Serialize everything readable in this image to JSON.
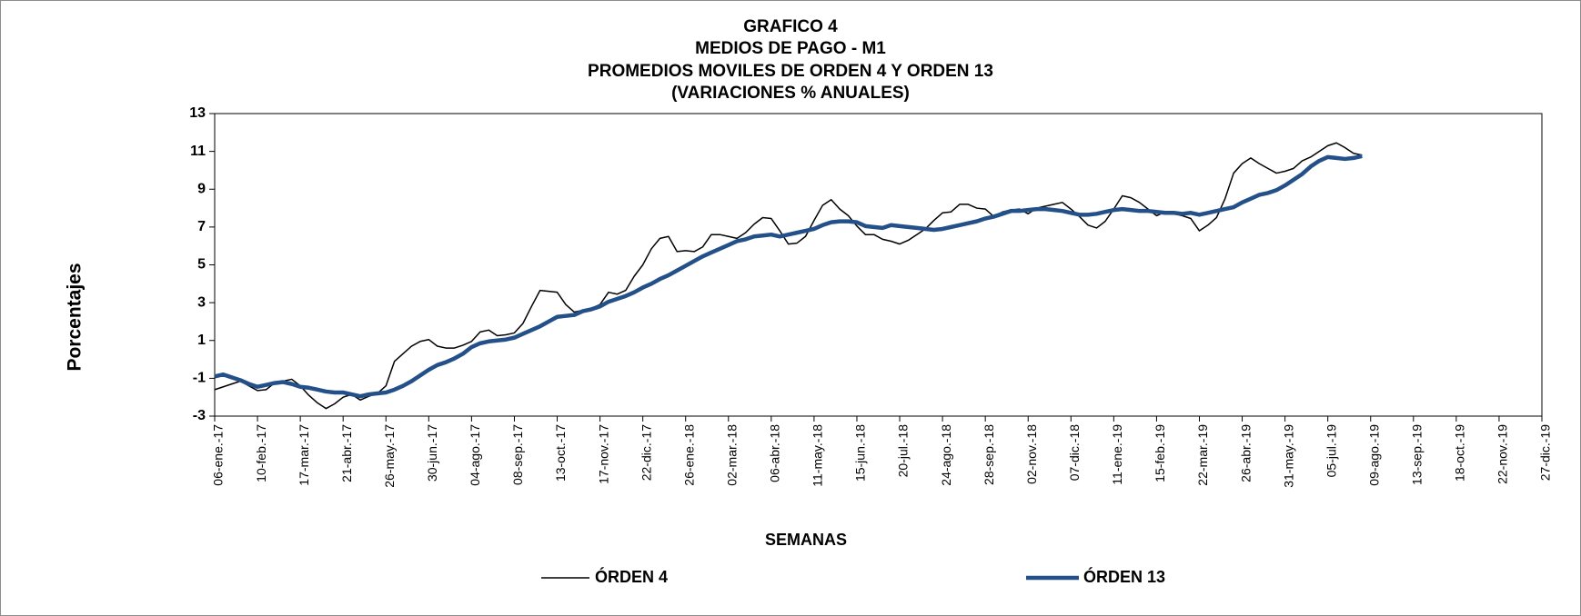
{
  "chart_data": {
    "type": "line",
    "title": [
      "GRAFICO 4",
      "MEDIOS DE PAGO - M1",
      "PROMEDIOS MOVILES DE ORDEN 4 Y ORDEN 13",
      "(VARIACIONES % ANUALES)"
    ],
    "y_label": "Porcentajes",
    "x_label": "SEMANAS",
    "ylim": [
      -3,
      13
    ],
    "yticks": [
      -3,
      -1,
      1,
      3,
      5,
      7,
      9,
      11,
      13
    ],
    "categories": [
      "06-ene.-17",
      null,
      null,
      null,
      null,
      "10-feb.-17",
      null,
      null,
      null,
      null,
      "17-mar.-17",
      null,
      null,
      null,
      null,
      "21-abr.-17",
      null,
      null,
      null,
      null,
      "26-may.-17",
      null,
      null,
      null,
      null,
      "30-jun.-17",
      null,
      null,
      null,
      null,
      "04-ago.-17",
      null,
      null,
      null,
      null,
      "08-sep.-17",
      null,
      null,
      null,
      null,
      "13-oct.-17",
      null,
      null,
      null,
      null,
      "17-nov.-17",
      null,
      null,
      null,
      null,
      "22-dic.-17",
      null,
      null,
      null,
      null,
      "26-ene.-18",
      null,
      null,
      null,
      null,
      "02-mar.-18",
      null,
      null,
      null,
      null,
      "06-abr.-18",
      null,
      null,
      null,
      null,
      "11-may.-18",
      null,
      null,
      null,
      null,
      "15-jun.-18",
      null,
      null,
      null,
      null,
      "20-jul.-18",
      null,
      null,
      null,
      null,
      "24-ago.-18",
      null,
      null,
      null,
      null,
      "28-sep.-18",
      null,
      null,
      null,
      null,
      "02-nov.-18",
      null,
      null,
      null,
      null,
      "07-dic.-18",
      null,
      null,
      null,
      null,
      "11-ene.-19",
      null,
      null,
      null,
      null,
      "15-feb.-19",
      null,
      null,
      null,
      null,
      "22-mar.-19",
      null,
      null,
      null,
      null,
      "26-abr.-19",
      null,
      null,
      null,
      null,
      "31-may.-19",
      null,
      null,
      null,
      null,
      "05-jul.-19",
      null,
      null,
      null,
      null,
      "09-ago.-19",
      null,
      null,
      null,
      null,
      "13-sep.-19",
      null,
      null,
      null,
      null,
      "18-oct.-19",
      null,
      null,
      null,
      null,
      "22-nov.-19",
      null,
      null,
      null,
      null,
      "27-dic.-19"
    ],
    "series": [
      {
        "name": "ÓRDEN 4",
        "color": "#000000",
        "width": 1.5,
        "values": [
          -1.6,
          -1.45,
          -1.3,
          -1.15,
          -1.4,
          -1.65,
          -1.6,
          -1.25,
          -1.15,
          -1.05,
          -1.4,
          -1.9,
          -2.3,
          -2.6,
          -2.35,
          -2.0,
          -1.85,
          -2.15,
          -1.95,
          -1.8,
          -1.4,
          -0.1,
          0.3,
          0.7,
          0.95,
          1.05,
          0.7,
          0.6,
          0.6,
          0.75,
          0.95,
          1.45,
          1.55,
          1.25,
          1.3,
          1.4,
          1.9,
          2.8,
          3.65,
          3.6,
          3.55,
          2.9,
          2.5,
          2.6,
          2.7,
          2.9,
          3.55,
          3.45,
          3.65,
          4.4,
          5.0,
          5.85,
          6.4,
          6.5,
          5.7,
          5.75,
          5.7,
          5.95,
          6.6,
          6.6,
          6.5,
          6.4,
          6.7,
          7.15,
          7.5,
          7.45,
          6.8,
          6.1,
          6.15,
          6.5,
          7.35,
          8.15,
          8.45,
          7.95,
          7.6,
          7.05,
          6.6,
          6.6,
          6.35,
          6.25,
          6.1,
          6.3,
          6.6,
          6.9,
          7.35,
          7.75,
          7.8,
          8.2,
          8.2,
          8.0,
          7.95,
          7.55,
          7.8,
          7.9,
          7.95,
          7.7,
          8.0,
          8.1,
          8.2,
          8.3,
          7.95,
          7.55,
          7.1,
          6.95,
          7.3,
          7.95,
          8.65,
          8.55,
          8.3,
          7.95,
          7.6,
          7.8,
          7.7,
          7.6,
          7.45,
          6.8,
          7.1,
          7.5,
          8.5,
          9.85,
          10.35,
          10.65,
          10.35,
          10.1,
          9.85,
          9.95,
          10.1,
          10.5,
          10.7,
          11.0,
          11.3,
          11.45,
          11.2,
          10.9,
          10.8,
          null,
          null,
          null,
          null,
          null,
          null,
          null,
          null,
          null,
          null,
          null,
          null,
          null,
          null,
          null,
          null,
          null,
          null,
          null,
          null,
          null
        ]
      },
      {
        "name": "ÓRDEN 13",
        "color": "#24508a",
        "width": 4.5,
        "values": [
          -0.9,
          -0.8,
          -0.95,
          -1.1,
          -1.3,
          -1.45,
          -1.35,
          -1.25,
          -1.2,
          -1.3,
          -1.45,
          -1.5,
          -1.6,
          -1.7,
          -1.75,
          -1.75,
          -1.85,
          -1.95,
          -1.85,
          -1.8,
          -1.75,
          -1.6,
          -1.4,
          -1.15,
          -0.85,
          -0.55,
          -0.3,
          -0.15,
          0.05,
          0.3,
          0.65,
          0.85,
          0.95,
          1.0,
          1.05,
          1.15,
          1.35,
          1.55,
          1.75,
          2.0,
          2.25,
          2.3,
          2.35,
          2.55,
          2.65,
          2.8,
          3.05,
          3.2,
          3.35,
          3.55,
          3.8,
          4.0,
          4.25,
          4.45,
          4.7,
          4.95,
          5.2,
          5.45,
          5.65,
          5.85,
          6.05,
          6.25,
          6.35,
          6.5,
          6.55,
          6.6,
          6.5,
          6.6,
          6.7,
          6.8,
          6.9,
          7.1,
          7.25,
          7.3,
          7.3,
          7.25,
          7.05,
          7.0,
          6.95,
          7.1,
          7.05,
          7.0,
          6.95,
          6.9,
          6.85,
          6.9,
          7.0,
          7.1,
          7.2,
          7.3,
          7.45,
          7.55,
          7.7,
          7.85,
          7.85,
          7.9,
          7.95,
          7.95,
          7.9,
          7.85,
          7.75,
          7.65,
          7.65,
          7.7,
          7.8,
          7.9,
          7.95,
          7.9,
          7.85,
          7.85,
          7.8,
          7.75,
          7.75,
          7.7,
          7.75,
          7.65,
          7.75,
          7.85,
          7.95,
          8.05,
          8.3,
          8.5,
          8.7,
          8.8,
          8.95,
          9.2,
          9.5,
          9.8,
          10.2,
          10.5,
          10.7,
          10.65,
          10.6,
          10.65,
          10.75,
          null,
          null,
          null,
          null,
          null,
          null,
          null,
          null,
          null,
          null,
          null,
          null,
          null,
          null,
          null,
          null,
          null,
          null,
          null,
          null,
          null
        ]
      }
    ]
  }
}
